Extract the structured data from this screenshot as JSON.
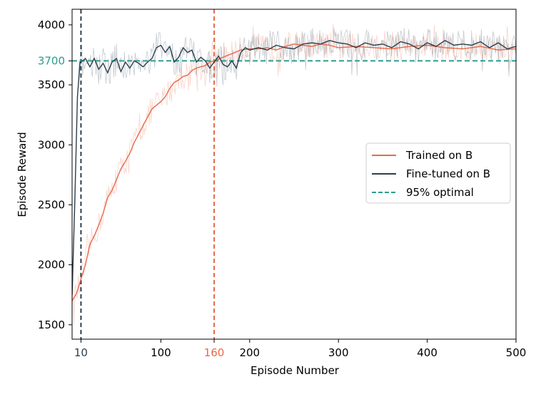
{
  "chart_data": {
    "type": "line",
    "title": "",
    "xlabel": "Episode Number",
    "ylabel": "Episode Reward",
    "xlim": [
      0,
      500
    ],
    "ylim": [
      1380,
      4130
    ],
    "grid": false,
    "legend_position": "center-right",
    "xticks": [
      {
        "value": 10,
        "label": "10",
        "highlight": "fine"
      },
      {
        "value": 100,
        "label": "100"
      },
      {
        "value": 160,
        "label": "160",
        "highlight": "trained"
      },
      {
        "value": 200,
        "label": "200"
      },
      {
        "value": 300,
        "label": "300"
      },
      {
        "value": 400,
        "label": "400"
      },
      {
        "value": 500,
        "label": "500"
      }
    ],
    "yticks": [
      {
        "value": 1500,
        "label": "1500"
      },
      {
        "value": 2000,
        "label": "2000"
      },
      {
        "value": 2500,
        "label": "2500"
      },
      {
        "value": 3000,
        "label": "3000"
      },
      {
        "value": 3500,
        "label": "3500"
      },
      {
        "value": 3700,
        "label": "3700",
        "highlight": "optimal"
      },
      {
        "value": 4000,
        "label": "4000"
      }
    ],
    "series": [
      {
        "name": "Trained on B",
        "color": "#e8694a",
        "x": [
          0,
          5,
          10,
          15,
          20,
          25,
          30,
          35,
          40,
          45,
          50,
          55,
          60,
          65,
          70,
          75,
          80,
          85,
          90,
          95,
          100,
          105,
          110,
          115,
          120,
          125,
          130,
          135,
          140,
          145,
          150,
          155,
          160,
          170,
          180,
          190,
          200,
          210,
          220,
          230,
          240,
          250,
          260,
          270,
          280,
          290,
          300,
          320,
          340,
          360,
          380,
          400,
          420,
          440,
          460,
          480,
          500
        ],
        "values": [
          1700,
          1760,
          1880,
          2000,
          2170,
          2240,
          2330,
          2430,
          2560,
          2620,
          2710,
          2800,
          2860,
          2930,
          3020,
          3090,
          3160,
          3230,
          3300,
          3330,
          3360,
          3400,
          3470,
          3520,
          3540,
          3570,
          3580,
          3620,
          3640,
          3650,
          3660,
          3690,
          3700,
          3730,
          3760,
          3790,
          3800,
          3800,
          3810,
          3790,
          3820,
          3840,
          3830,
          3820,
          3840,
          3830,
          3810,
          3820,
          3810,
          3800,
          3820,
          3830,
          3810,
          3800,
          3820,
          3790,
          3800
        ]
      },
      {
        "name": "Fine-tuned on B",
        "color": "#2b3f4f",
        "x": [
          0,
          3,
          6,
          9,
          12,
          15,
          20,
          25,
          30,
          35,
          40,
          45,
          50,
          55,
          60,
          65,
          70,
          75,
          80,
          85,
          90,
          95,
          100,
          105,
          110,
          115,
          120,
          125,
          130,
          135,
          140,
          145,
          150,
          155,
          160,
          165,
          170,
          175,
          180,
          185,
          190,
          195,
          200,
          210,
          220,
          230,
          240,
          250,
          260,
          270,
          280,
          290,
          300,
          310,
          320,
          330,
          340,
          350,
          360,
          370,
          380,
          390,
          400,
          410,
          420,
          430,
          440,
          450,
          460,
          470,
          480,
          490,
          500
        ],
        "values": [
          1750,
          2500,
          3400,
          3690,
          3700,
          3720,
          3650,
          3720,
          3630,
          3680,
          3600,
          3690,
          3720,
          3610,
          3690,
          3640,
          3700,
          3680,
          3650,
          3690,
          3720,
          3810,
          3830,
          3770,
          3820,
          3690,
          3730,
          3810,
          3770,
          3790,
          3690,
          3730,
          3700,
          3640,
          3690,
          3740,
          3670,
          3650,
          3700,
          3640,
          3770,
          3810,
          3790,
          3810,
          3790,
          3830,
          3810,
          3800,
          3840,
          3850,
          3840,
          3870,
          3850,
          3840,
          3810,
          3850,
          3830,
          3840,
          3810,
          3860,
          3840,
          3800,
          3850,
          3820,
          3870,
          3830,
          3840,
          3830,
          3860,
          3810,
          3850,
          3800,
          3820
        ]
      },
      {
        "name": "95% optimal",
        "color": "#2a9d8f",
        "style": "dashed",
        "hline": 3700
      }
    ],
    "vlines": [
      {
        "x": 10,
        "color": "#2b3f4f",
        "style": "dashed"
      },
      {
        "x": 160,
        "color": "#e8694a",
        "style": "dashed"
      }
    ],
    "legend": [
      {
        "label": "Trained on B",
        "color": "#e8694a",
        "style": "solid"
      },
      {
        "label": "Fine-tuned on B",
        "color": "#2b3f4f",
        "style": "solid"
      },
      {
        "label": "95% optimal",
        "color": "#2a9d8f",
        "style": "dashed"
      }
    ]
  }
}
